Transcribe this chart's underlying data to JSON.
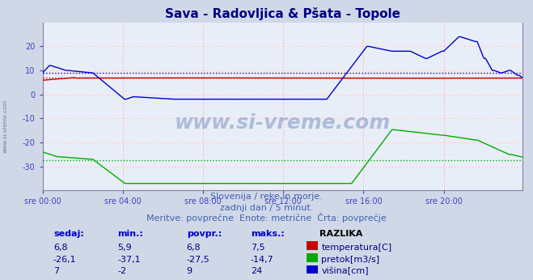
{
  "title": "Sava - Radovljica & Pšata - Topole",
  "bg_color": "#d0d8e8",
  "plot_bg_color": "#e8eef8",
  "grid_color_major": "#ffffff",
  "xlabel_color": "#4040c0",
  "title_color": "#000080",
  "xlabels": [
    "sre 00:00",
    "sre 04:00",
    "sre 08:00",
    "sre 12:00",
    "sre 16:00",
    "sre 20:00"
  ],
  "ylim": [
    -40,
    30
  ],
  "yticks": [
    -30,
    -20,
    -10,
    0,
    10,
    20
  ],
  "n_points": 288,
  "temp_color": "#cc0000",
  "temp_avg": 6.8,
  "pretok_color": "#00aa00",
  "pretok_avg": -27.5,
  "visina_color": "#0000cc",
  "visina_avg": 9,
  "watermark": "www.si-vreme.com",
  "subtitle1": "Slovenija / reke in morje.",
  "subtitle2": "zadnji dan / 5 minut.",
  "subtitle3": "Meritve: povprečne  Enote: metrične  Črta: povprečje",
  "legend_header": "RAZLIKA",
  "legend_col1": "sedaj:",
  "legend_col2": "min.:",
  "legend_col3": "povpr.:",
  "legend_col4": "maks.:",
  "legend_temp": "temperatura[C]",
  "legend_pretok": "pretok[m3/s]",
  "legend_visina": "višina[cm]",
  "row1": [
    "6,8",
    "5,9",
    "6,8",
    "7,5"
  ],
  "row2": [
    "-26,1",
    "-37,1",
    "-27,5",
    "-14,7"
  ],
  "row3": [
    "7",
    "-2",
    "9",
    "24"
  ]
}
